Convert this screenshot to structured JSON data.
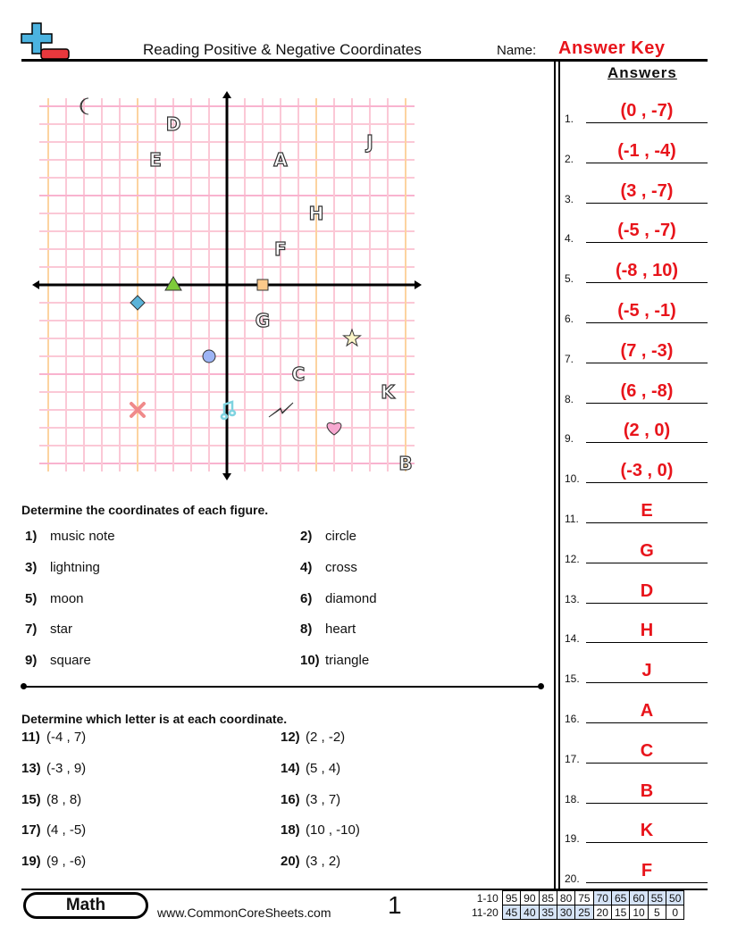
{
  "header": {
    "title": "Reading Positive & Negative Coordinates",
    "name_label": "Name:",
    "answer_key": "Answer Key",
    "logo": "plus-minus-logo"
  },
  "answers": {
    "heading": "Answers",
    "items": [
      {
        "n": "1.",
        "v": "(0 , -7)"
      },
      {
        "n": "2.",
        "v": "(-1 , -4)"
      },
      {
        "n": "3.",
        "v": "(3 , -7)"
      },
      {
        "n": "4.",
        "v": "(-5 , -7)"
      },
      {
        "n": "5.",
        "v": "(-8 , 10)"
      },
      {
        "n": "6.",
        "v": "(-5 , -1)"
      },
      {
        "n": "7.",
        "v": "(7 , -3)"
      },
      {
        "n": "8.",
        "v": "(6 , -8)"
      },
      {
        "n": "9.",
        "v": "(2 , 0)"
      },
      {
        "n": "10.",
        "v": "(-3 , 0)"
      },
      {
        "n": "11.",
        "v": "E"
      },
      {
        "n": "12.",
        "v": "G"
      },
      {
        "n": "13.",
        "v": "D"
      },
      {
        "n": "14.",
        "v": "H"
      },
      {
        "n": "15.",
        "v": "J"
      },
      {
        "n": "16.",
        "v": "A"
      },
      {
        "n": "17.",
        "v": "C"
      },
      {
        "n": "18.",
        "v": "B"
      },
      {
        "n": "19.",
        "v": "K"
      },
      {
        "n": "20.",
        "v": "F"
      }
    ]
  },
  "graph": {
    "range": [
      -10,
      10
    ],
    "letters": [
      {
        "t": "A",
        "x": 3,
        "y": 7
      },
      {
        "t": "B",
        "x": 10,
        "y": -10
      },
      {
        "t": "C",
        "x": 4,
        "y": -5
      },
      {
        "t": "D",
        "x": -3,
        "y": 9
      },
      {
        "t": "E",
        "x": -4,
        "y": 7
      },
      {
        "t": "F",
        "x": 3,
        "y": 2
      },
      {
        "t": "G",
        "x": 2,
        "y": -2
      },
      {
        "t": "H",
        "x": 5,
        "y": 4
      },
      {
        "t": "J",
        "x": 8,
        "y": 8
      },
      {
        "t": "K",
        "x": 9,
        "y": -6
      }
    ],
    "figures": [
      {
        "name": "music-note",
        "x": 0,
        "y": -7,
        "color": "#7fd3e0"
      },
      {
        "name": "circle",
        "x": -1,
        "y": -4,
        "color": "#9db4f5"
      },
      {
        "name": "lightning",
        "x": 3,
        "y": -7,
        "color": "#f5e04a"
      },
      {
        "name": "cross",
        "x": -5,
        "y": -7,
        "color": "#f08a8a"
      },
      {
        "name": "moon",
        "x": -8,
        "y": 10,
        "color": "#f7ef8f"
      },
      {
        "name": "diamond",
        "x": -5,
        "y": -1,
        "color": "#5ab3d9"
      },
      {
        "name": "star",
        "x": 7,
        "y": -3,
        "color": "#fbf5c8"
      },
      {
        "name": "heart",
        "x": 6,
        "y": -8,
        "color": "#f7a8d0"
      },
      {
        "name": "square",
        "x": 2,
        "y": 0,
        "color": "#fbc98a"
      },
      {
        "name": "triangle",
        "x": -3,
        "y": 0,
        "color": "#7ecb3a"
      }
    ]
  },
  "section1": {
    "heading": "Determine the coordinates of each figure.",
    "items": [
      {
        "n": "1)",
        "t": "music note"
      },
      {
        "n": "2)",
        "t": "circle"
      },
      {
        "n": "3)",
        "t": "lightning"
      },
      {
        "n": "4)",
        "t": "cross"
      },
      {
        "n": "5)",
        "t": "moon"
      },
      {
        "n": "6)",
        "t": "diamond"
      },
      {
        "n": "7)",
        "t": "star"
      },
      {
        "n": "8)",
        "t": "heart"
      },
      {
        "n": "9)",
        "t": "square"
      },
      {
        "n": "10)",
        "t": "triangle"
      }
    ]
  },
  "section2": {
    "heading": "Determine which letter is at each coordinate.",
    "items": [
      {
        "n": "11)",
        "t": "(-4 , 7)"
      },
      {
        "n": "12)",
        "t": "(2 , -2)"
      },
      {
        "n": "13)",
        "t": "(-3 , 9)"
      },
      {
        "n": "14)",
        "t": "(5 , 4)"
      },
      {
        "n": "15)",
        "t": "(8 , 8)"
      },
      {
        "n": "16)",
        "t": "(3 , 7)"
      },
      {
        "n": "17)",
        "t": "(4 , -5)"
      },
      {
        "n": "18)",
        "t": "(10 , -10)"
      },
      {
        "n": "19)",
        "t": "(9 , -6)"
      },
      {
        "n": "20)",
        "t": "(3 , 2)"
      }
    ]
  },
  "footer": {
    "subject": "Math",
    "site": "www.CommonCoreSheets.com",
    "page": "1",
    "score_rows": [
      {
        "label": "1-10",
        "vals": [
          "95",
          "90",
          "85",
          "80",
          "75",
          "70",
          "65",
          "60",
          "55",
          "50"
        ]
      },
      {
        "label": "11-20",
        "vals": [
          "45",
          "40",
          "35",
          "30",
          "25",
          "20",
          "15",
          "10",
          "5",
          "0"
        ]
      }
    ]
  }
}
